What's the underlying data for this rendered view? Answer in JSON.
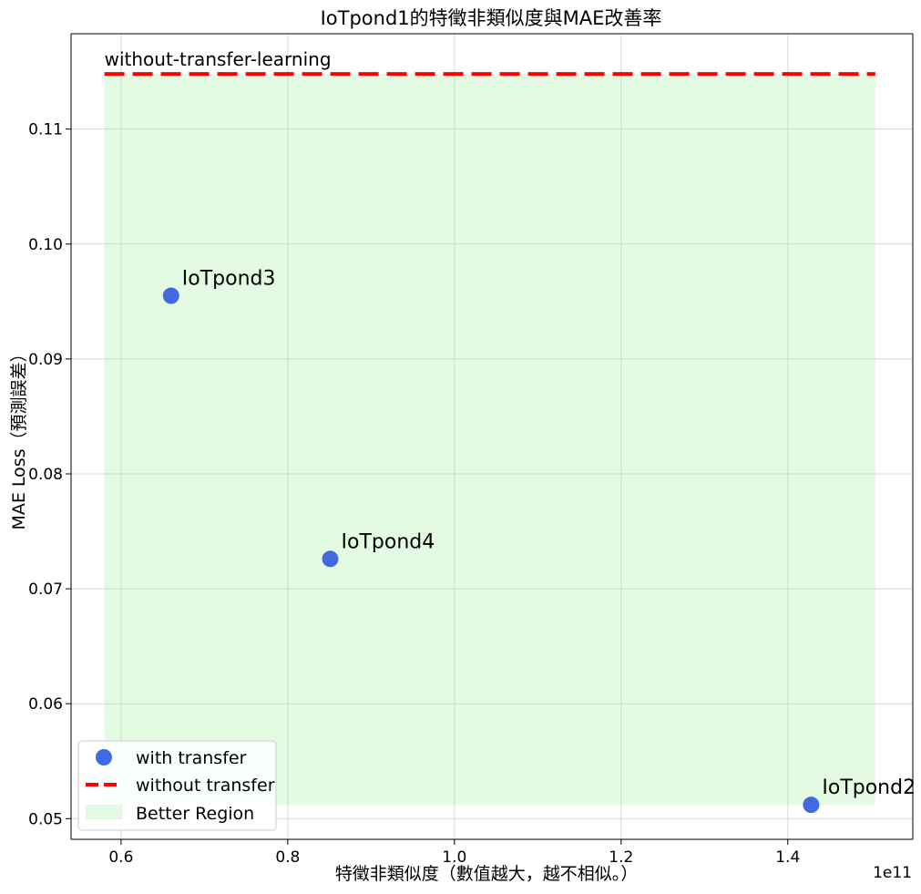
{
  "chart_data": {
    "type": "scatter",
    "title": "IoTpond1的特徵非類似度與MAE改善率",
    "xlabel": "特徵非類似度（數值越大，越不相似。）",
    "ylabel": "MAE Loss（預測誤差）",
    "x_offset_text": "1e11",
    "xlim": [
      0.54,
      1.55
    ],
    "ylim": [
      0.0482,
      0.1183
    ],
    "x_ticks": [
      0.6,
      0.8,
      1.0,
      1.2,
      1.4
    ],
    "x_tick_labels": [
      "0.6",
      "0.8",
      "1.0",
      "1.2",
      "1.4"
    ],
    "y_ticks": [
      0.05,
      0.06,
      0.07,
      0.08,
      0.09,
      0.1,
      0.11
    ],
    "y_tick_labels": [
      "0.05",
      "0.06",
      "0.07",
      "0.08",
      "0.09",
      "0.10",
      "0.11"
    ],
    "grid": true,
    "legend_position": "lower-left",
    "series": [
      {
        "name": "with transfer",
        "color": "#4169e1",
        "points": [
          {
            "label": "IoTpond3",
            "x": 0.66,
            "y": 0.0955
          },
          {
            "label": "IoTpond4",
            "x": 0.851,
            "y": 0.0726
          },
          {
            "label": "IoTpond2",
            "x": 1.428,
            "y": 0.0512
          }
        ]
      }
    ],
    "reference_line": {
      "name": "without transfer",
      "label": "without-transfer-learning",
      "y": 0.1148,
      "x_range": [
        0.58,
        1.505
      ],
      "color": "#ff0000"
    },
    "region": {
      "name": "Better Region",
      "x_range": [
        0.58,
        1.505
      ],
      "y_range": [
        0.0512,
        0.1148
      ],
      "color": "#90ee90"
    }
  }
}
